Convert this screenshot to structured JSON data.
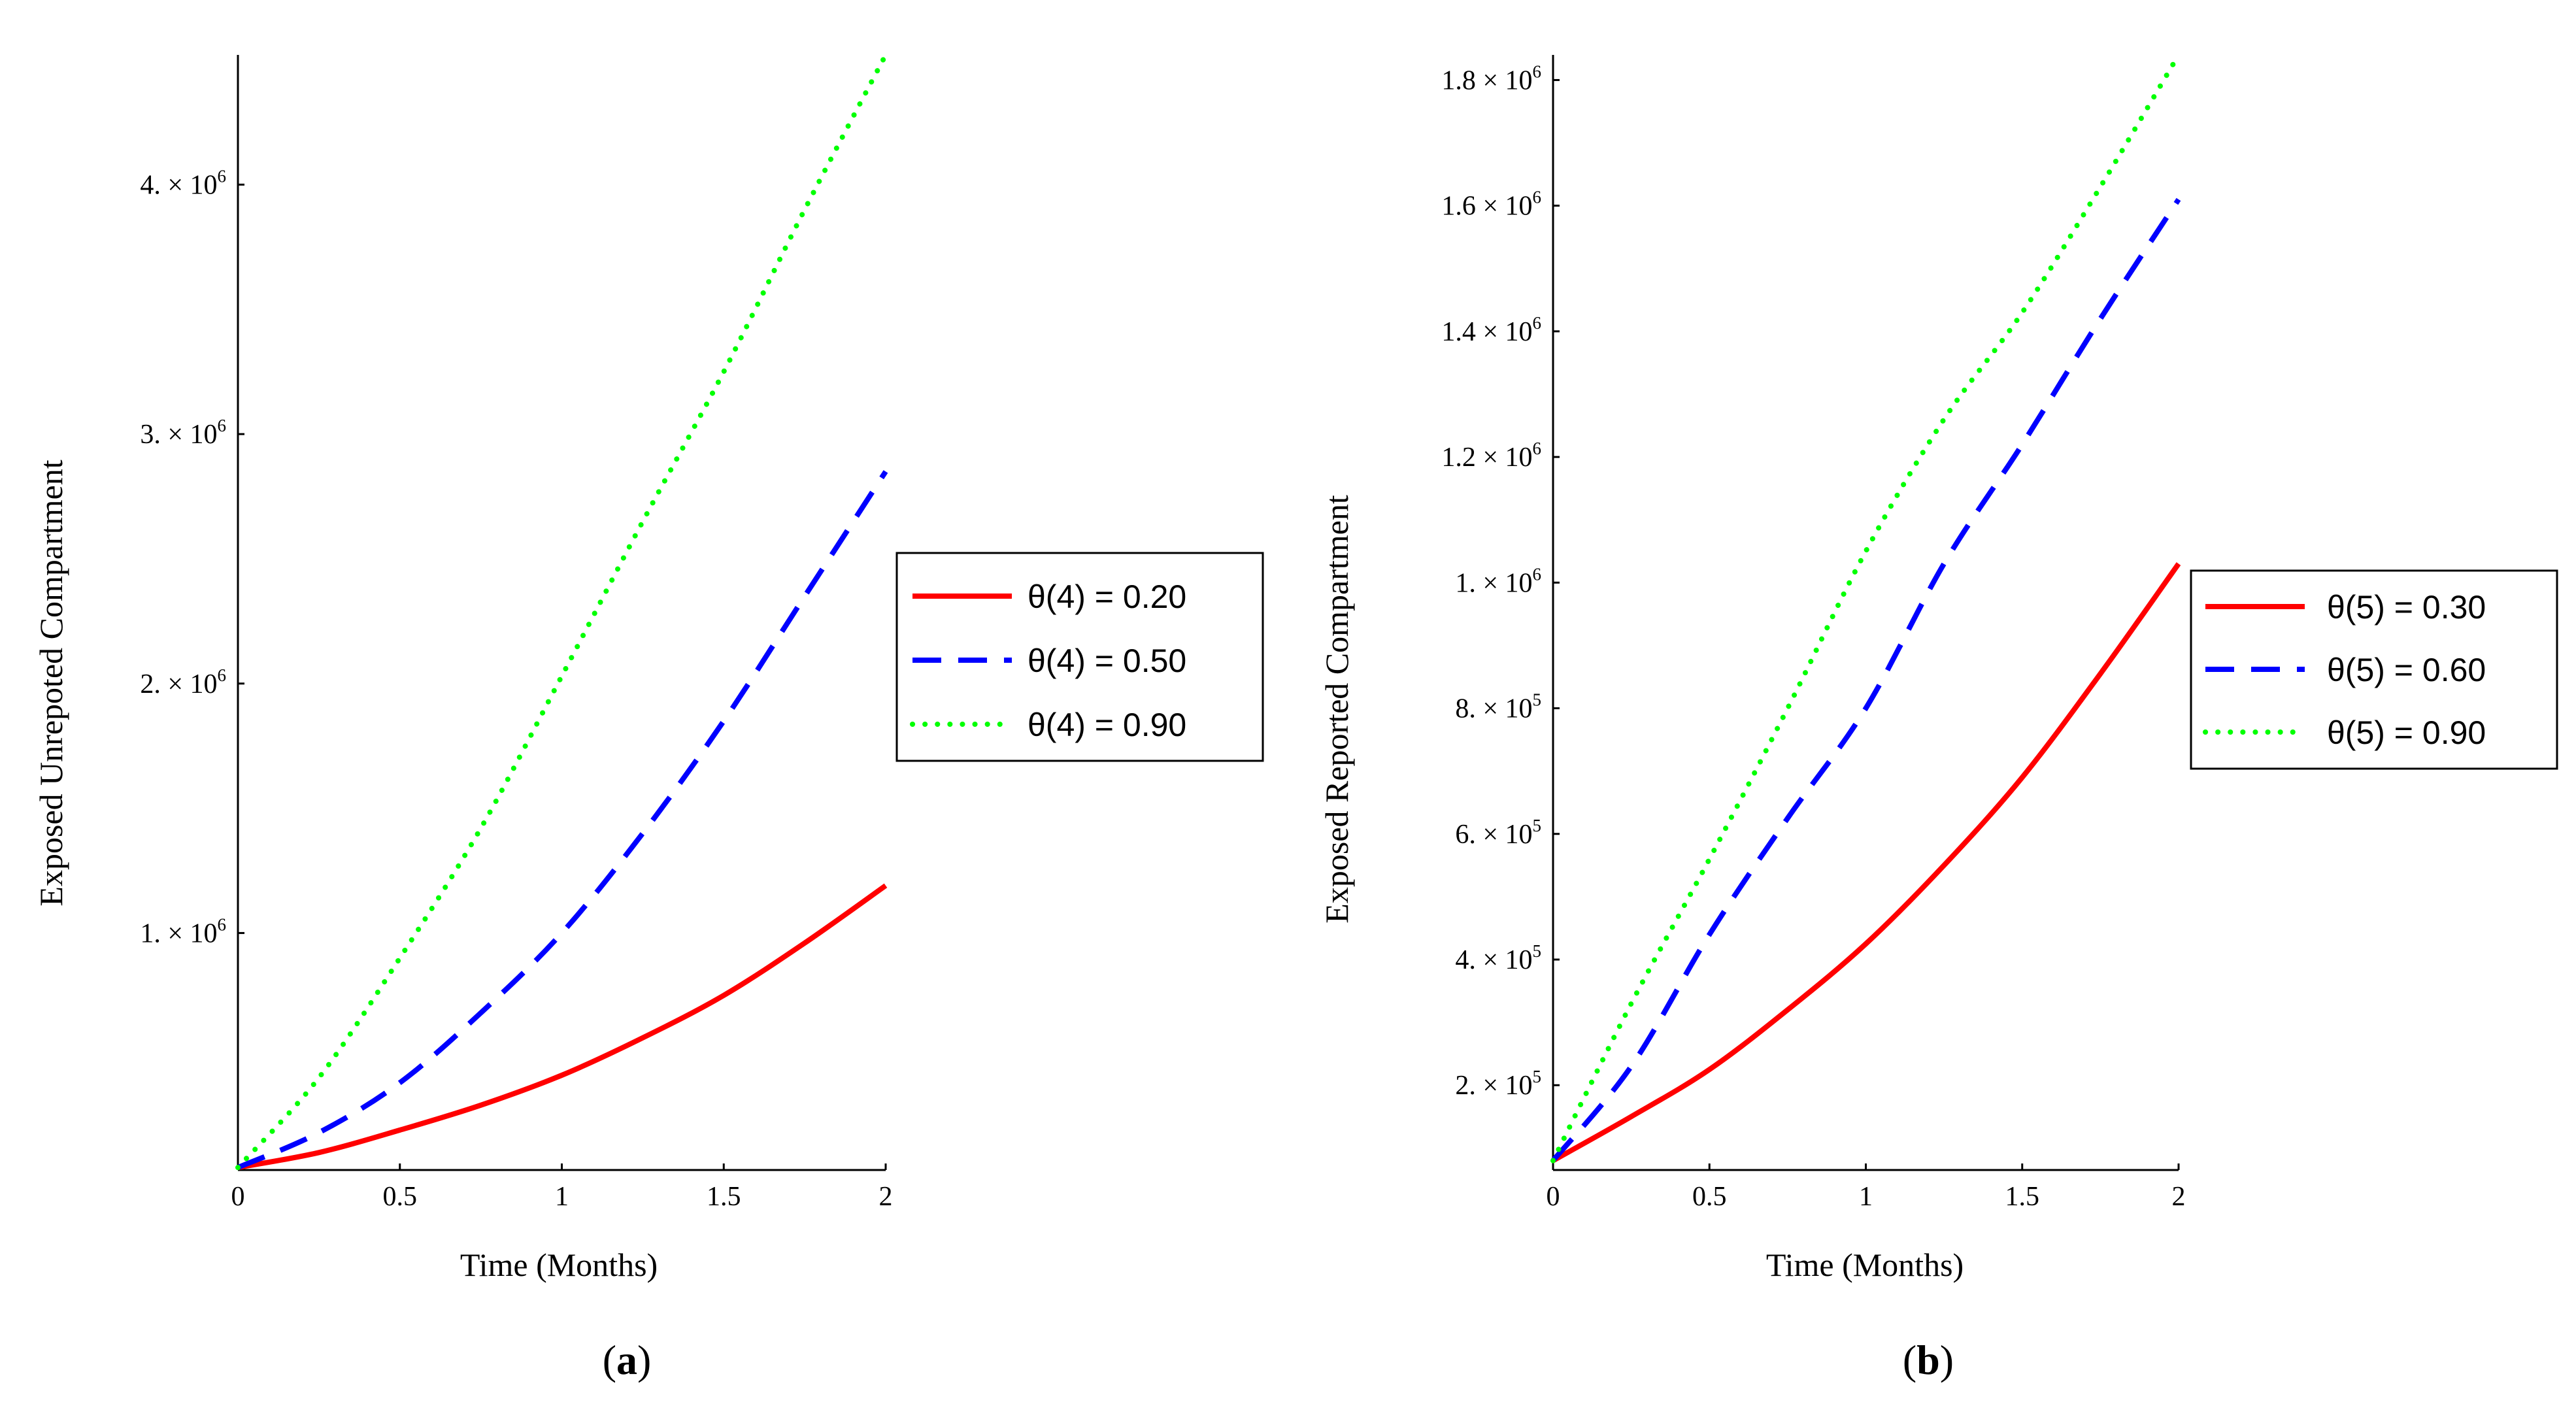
{
  "chart_data": [
    {
      "type": "line",
      "panel": "a",
      "caption": {
        "open": "(",
        "letter": "a",
        "close": ")"
      },
      "title": "",
      "xlabel": "Time (Months)",
      "ylabel": "Exposed Unrepoted Compartment",
      "xlim": [
        0,
        2
      ],
      "ylim": [
        50000,
        4520000
      ],
      "x_ticks": [
        {
          "value": 0,
          "label": "0"
        },
        {
          "value": 0.5,
          "label": "0.5"
        },
        {
          "value": 1,
          "label": "1"
        },
        {
          "value": 1.5,
          "label": "1.5"
        },
        {
          "value": 2,
          "label": "2"
        }
      ],
      "y_ticks": [
        {
          "value": 1000000,
          "mantissa": "1.",
          "times": "×",
          "base": "10",
          "exp": "6"
        },
        {
          "value": 2000000,
          "mantissa": "2.",
          "times": "×",
          "base": "10",
          "exp": "6"
        },
        {
          "value": 3000000,
          "mantissa": "3.",
          "times": "×",
          "base": "10",
          "exp": "6"
        },
        {
          "value": 4000000,
          "mantissa": "4.",
          "times": "×",
          "base": "10",
          "exp": "6"
        }
      ],
      "legend_position": "right",
      "series": [
        {
          "name": "θ(4) = 0.20",
          "color": "#ff0000",
          "style": "solid",
          "x": [
            0,
            0.25,
            0.5,
            0.75,
            1,
            1.25,
            1.5,
            1.75,
            2
          ],
          "y": [
            60000,
            120000,
            210000,
            310000,
            430000,
            580000,
            750000,
            960000,
            1190000
          ]
        },
        {
          "name": "θ(4) = 0.50",
          "color": "#0000ff",
          "style": "dash",
          "x": [
            0,
            0.25,
            0.5,
            0.75,
            1,
            1.25,
            1.5,
            1.75,
            2
          ],
          "y": [
            60000,
            200000,
            400000,
            680000,
            1000000,
            1400000,
            1850000,
            2350000,
            2850000
          ]
        },
        {
          "name": "θ(4) = 0.90",
          "color": "#00ff00",
          "style": "dot",
          "x": [
            0,
            0.25,
            0.5,
            0.75,
            1,
            1.25,
            1.5,
            1.75,
            2
          ],
          "y": [
            60000,
            420000,
            900000,
            1420000,
            2030000,
            2650000,
            3250000,
            3900000,
            4520000
          ]
        }
      ]
    },
    {
      "type": "line",
      "panel": "b",
      "caption": {
        "open": "(",
        "letter": "b",
        "close": ")"
      },
      "title": "",
      "xlabel": "Time (Months)",
      "ylabel": "Exposed Reported Compartment",
      "xlim": [
        0,
        2
      ],
      "ylim": [
        65000,
        1840000
      ],
      "x_ticks": [
        {
          "value": 0,
          "label": "0"
        },
        {
          "value": 0.5,
          "label": "0.5"
        },
        {
          "value": 1,
          "label": "1"
        },
        {
          "value": 1.5,
          "label": "1.5"
        },
        {
          "value": 2,
          "label": "2"
        }
      ],
      "y_ticks": [
        {
          "value": 200000,
          "mantissa": "2.",
          "times": "×",
          "base": "10",
          "exp": "5"
        },
        {
          "value": 400000,
          "mantissa": "4.",
          "times": "×",
          "base": "10",
          "exp": "5"
        },
        {
          "value": 600000,
          "mantissa": "6.",
          "times": "×",
          "base": "10",
          "exp": "5"
        },
        {
          "value": 800000,
          "mantissa": "8.",
          "times": "×",
          "base": "10",
          "exp": "5"
        },
        {
          "value": 1000000,
          "mantissa": "1.",
          "times": "×",
          "base": "10",
          "exp": "6"
        },
        {
          "value": 1200000,
          "mantissa": "1.2",
          "times": "×",
          "base": "10",
          "exp": "6"
        },
        {
          "value": 1400000,
          "mantissa": "1.4",
          "times": "×",
          "base": "10",
          "exp": "6"
        },
        {
          "value": 1600000,
          "mantissa": "1.6",
          "times": "×",
          "base": "10",
          "exp": "6"
        },
        {
          "value": 1800000,
          "mantissa": "1.8",
          "times": "×",
          "base": "10",
          "exp": "6"
        }
      ],
      "legend_position": "right",
      "series": [
        {
          "name": "θ(5) = 0.30",
          "color": "#ff0000",
          "style": "solid",
          "x": [
            0,
            0.25,
            0.5,
            0.75,
            1,
            1.25,
            1.5,
            1.75,
            2
          ],
          "y": [
            80000,
            150000,
            225000,
            320000,
            425000,
            550000,
            690000,
            855000,
            1030000
          ]
        },
        {
          "name": "θ(5) = 0.60",
          "color": "#0000ff",
          "style": "dash",
          "x": [
            0,
            0.25,
            0.5,
            0.75,
            1,
            1.25,
            1.5,
            1.75,
            2
          ],
          "y": [
            80000,
            230000,
            440000,
            625000,
            800000,
            1030000,
            1220000,
            1420000,
            1610000
          ]
        },
        {
          "name": "θ(5) = 0.90",
          "color": "#00ff00",
          "style": "dot",
          "x": [
            0,
            0.25,
            0.5,
            0.75,
            1,
            1.25,
            1.5,
            1.75,
            2
          ],
          "y": [
            80000,
            330000,
            560000,
            800000,
            1050000,
            1260000,
            1430000,
            1630000,
            1840000
          ]
        }
      ]
    }
  ]
}
